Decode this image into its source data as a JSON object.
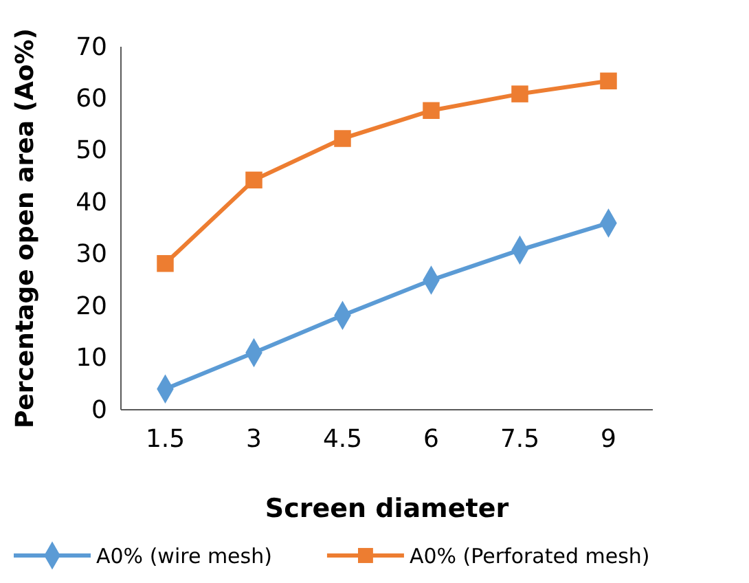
{
  "chart_data": {
    "type": "line",
    "xlabel": "Screen diameter",
    "ylabel": "Percentage open area (Ao%)",
    "categories": [
      "1.5",
      "3",
      "4.5",
      "6",
      "7.5",
      "9"
    ],
    "ylim": [
      0,
      70
    ],
    "yticks": [
      0,
      10,
      20,
      30,
      40,
      50,
      60,
      70
    ],
    "grid": false,
    "legend": "bottom",
    "line_style": "solid",
    "series": [
      {
        "name": "A0% (wire mesh)",
        "color": "#5b9bd5",
        "marker": "diamond",
        "values": [
          4,
          11,
          18.2,
          25,
          30.8,
          36
        ]
      },
      {
        "name": "A0% (Perforated mesh)",
        "color": "#ed7d31",
        "marker": "square",
        "values": [
          28.2,
          44.3,
          52.3,
          57.7,
          60.9,
          63.4
        ]
      }
    ]
  }
}
